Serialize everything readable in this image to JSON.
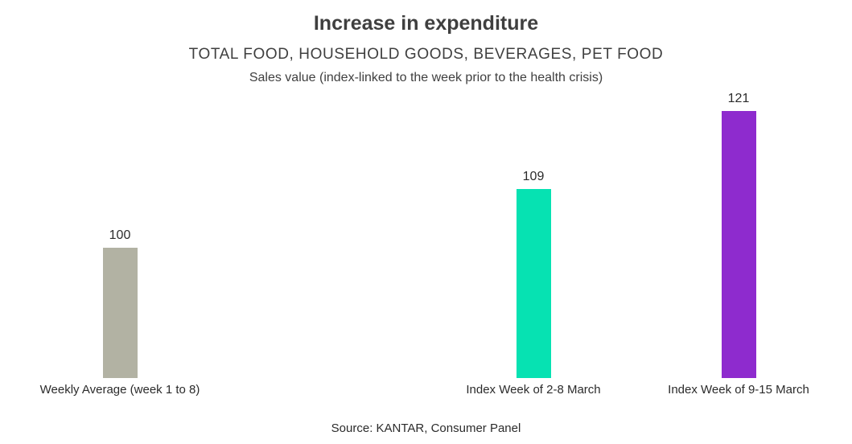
{
  "chart_data": {
    "type": "bar",
    "title": "Increase in expenditure",
    "subtitle": "TOTAL FOOD, HOUSEHOLD GOODS, BEVERAGES, PET FOOD",
    "annotation": "Sales value (index-linked to the week prior to the health crisis)",
    "categories": [
      "Weekly Average (week 1 to 8)",
      "Index Week of 2-8 March",
      "Index Week of 9-15 March"
    ],
    "values": [
      100,
      109,
      121
    ],
    "bar_colors": [
      "#b2b2a3",
      "#06e2b2",
      "#8e2bce"
    ],
    "ylim": [
      80,
      125
    ],
    "grid": false,
    "legend": false,
    "xlabel": "",
    "ylabel": "",
    "source": "Source: KANTAR, Consumer Panel"
  }
}
